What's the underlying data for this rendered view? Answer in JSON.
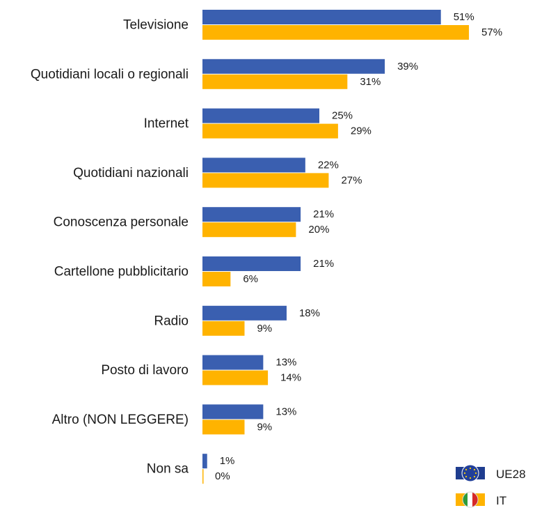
{
  "chart_data": {
    "type": "bar",
    "orientation": "horizontal",
    "title": "",
    "xlabel": "",
    "ylabel": "",
    "xlim": [
      0,
      57
    ],
    "grid": false,
    "legend_placement": "bottom-right",
    "categories": [
      "Televisione",
      "Quotidiani locali o regionali",
      "Internet",
      "Quotidiani nazionali",
      "Conoscenza personale",
      "Cartellone pubblicitario",
      "Radio",
      "Posto di lavoro",
      "Altro (NON LEGGERE)",
      "Non sa"
    ],
    "series": [
      {
        "name": "UE28",
        "color": "#3a5fb0",
        "values": [
          51,
          39,
          25,
          22,
          21,
          21,
          18,
          13,
          13,
          1
        ]
      },
      {
        "name": "IT",
        "color": "#ffb300",
        "values": [
          57,
          31,
          29,
          27,
          20,
          6,
          9,
          14,
          9,
          0
        ]
      }
    ],
    "value_suffix": "%",
    "legend": [
      {
        "label": "UE28",
        "icon": "eu-flag-icon"
      },
      {
        "label": "IT",
        "icon": "italy-flag-icon"
      }
    ]
  }
}
